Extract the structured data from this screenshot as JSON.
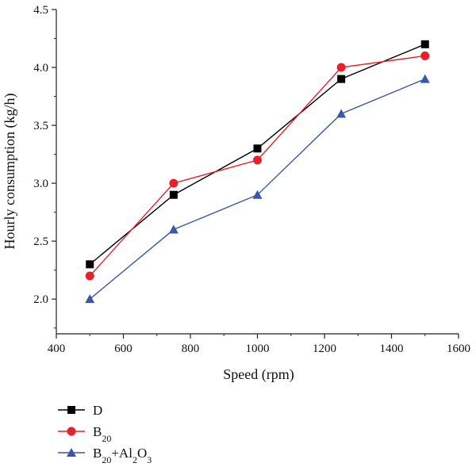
{
  "chart_data": {
    "type": "line",
    "xlabel": "Speed (rpm)",
    "ylabel": "Hourly consumption (kg/h)",
    "xlim": [
      400,
      1600
    ],
    "ylim": [
      1.7,
      4.5
    ],
    "xticks": [
      400,
      600,
      800,
      1000,
      1200,
      1400,
      1600
    ],
    "yticks": [
      2.0,
      2.5,
      3.0,
      3.5,
      4.0,
      4.5
    ],
    "x": [
      500,
      750,
      1000,
      1250,
      1500
    ],
    "grid": false,
    "legend_position": "bottom-left",
    "series": [
      {
        "name": "D",
        "values": [
          2.3,
          2.9,
          3.3,
          3.9,
          4.2
        ],
        "color": "#000000",
        "marker": "square"
      },
      {
        "name": "B20",
        "values": [
          2.2,
          3.0,
          3.2,
          4.0,
          4.1
        ],
        "color": "#e8202a",
        "marker": "circle"
      },
      {
        "name": "B20+Al2O3",
        "values": [
          2.0,
          2.6,
          2.9,
          3.6,
          3.9
        ],
        "color": "#3a56a8",
        "marker": "triangle"
      }
    ]
  }
}
